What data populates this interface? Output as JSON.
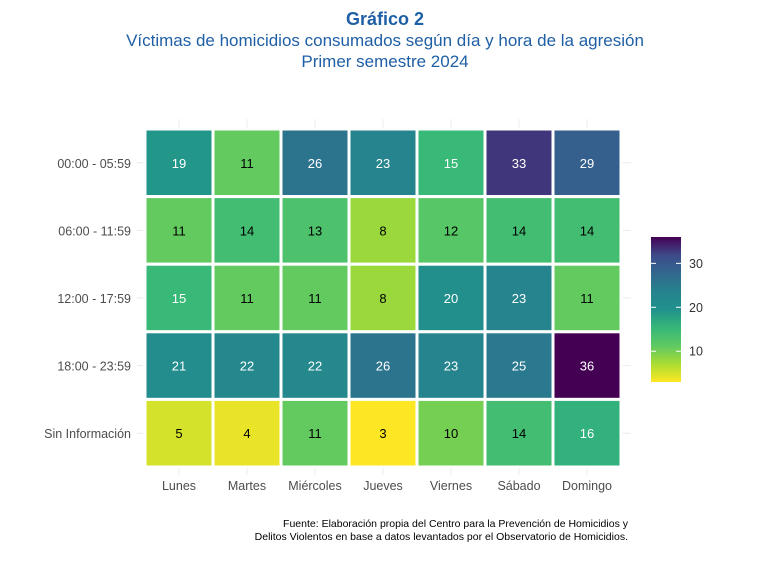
{
  "header": {
    "title": "Gráfico 2",
    "subtitle_1": "Víctimas de homicidios consumados según día y hora de la agresión",
    "subtitle_2": "Primer semestre 2024"
  },
  "source": {
    "line_1": "Fuente: Elaboración propia del Centro para la Prevención de Homicidios y",
    "line_2": "Delitos Violentos en base a datos levantados por el Observatorio de Homicidios."
  },
  "chart_data": {
    "type": "heatmap",
    "x_categories": [
      "Lunes",
      "Martes",
      "Miércoles",
      "Jueves",
      "Viernes",
      "Sábado",
      "Domingo"
    ],
    "y_categories": [
      "00:00 - 05:59",
      "06:00 - 11:59",
      "12:00 - 17:59",
      "18:00 - 23:59",
      "Sin Información"
    ],
    "values": [
      [
        19,
        11,
        26,
        23,
        15,
        33,
        29
      ],
      [
        11,
        14,
        13,
        8,
        12,
        14,
        14
      ],
      [
        15,
        11,
        11,
        8,
        20,
        23,
        11
      ],
      [
        21,
        22,
        22,
        26,
        23,
        25,
        36
      ],
      [
        5,
        4,
        11,
        3,
        10,
        14,
        16
      ]
    ],
    "color_scale": "viridis (reversed)",
    "color_range": [
      3,
      36
    ],
    "legend": {
      "ticks": [
        10,
        20,
        30
      ],
      "position": "right"
    },
    "grid": true
  }
}
